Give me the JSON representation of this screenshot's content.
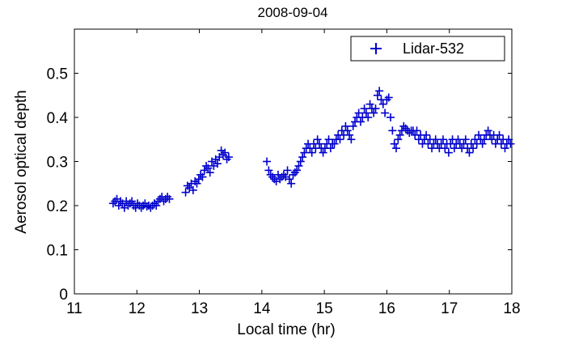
{
  "chart_data": {
    "type": "scatter",
    "title": "2008-09-04",
    "xlabel": "Local time (hr)",
    "ylabel": "Aerosol optical depth",
    "xlim": [
      11,
      18
    ],
    "ylim": [
      0,
      0.6
    ],
    "xticks": [
      "11",
      "12",
      "13",
      "14",
      "15",
      "16",
      "17",
      "18"
    ],
    "yticks": [
      "0",
      "0.1",
      "0.2",
      "0.3",
      "0.4",
      "0.5"
    ],
    "grid": false,
    "legend_position": "top-right",
    "marker": "plus",
    "series": [
      {
        "name": "Lidar-532",
        "color": "#0000cc",
        "x": [
          11.62,
          11.65,
          11.68,
          11.71,
          11.74,
          11.77,
          11.8,
          11.83,
          11.86,
          11.89,
          11.92,
          11.95,
          11.98,
          12.01,
          12.04,
          12.07,
          12.1,
          12.13,
          12.16,
          12.19,
          12.22,
          12.25,
          12.28,
          12.31,
          12.34,
          12.37,
          12.4,
          12.43,
          12.46,
          12.49,
          12.52,
          12.78,
          12.81,
          12.84,
          12.87,
          12.9,
          12.93,
          12.96,
          12.99,
          13.02,
          13.05,
          13.08,
          13.11,
          13.14,
          13.17,
          13.2,
          13.23,
          13.26,
          13.29,
          13.32,
          13.35,
          13.38,
          13.41,
          13.44,
          13.47,
          14.08,
          14.11,
          14.14,
          14.17,
          14.2,
          14.23,
          14.26,
          14.29,
          14.32,
          14.35,
          14.38,
          14.41,
          14.44,
          14.47,
          14.5,
          14.53,
          14.56,
          14.59,
          14.62,
          14.65,
          14.68,
          14.71,
          14.74,
          14.77,
          14.8,
          14.83,
          14.86,
          14.89,
          14.92,
          14.95,
          14.98,
          15.01,
          15.04,
          15.07,
          15.1,
          15.13,
          15.16,
          15.19,
          15.22,
          15.25,
          15.28,
          15.31,
          15.34,
          15.37,
          15.4,
          15.43,
          15.46,
          15.49,
          15.52,
          15.55,
          15.58,
          15.61,
          15.64,
          15.67,
          15.7,
          15.73,
          15.76,
          15.79,
          15.82,
          15.85,
          15.88,
          15.91,
          15.94,
          15.97,
          16.0,
          16.03,
          16.06,
          16.09,
          16.12,
          16.15,
          16.18,
          16.21,
          16.24,
          16.27,
          16.3,
          16.33,
          16.36,
          16.39,
          16.42,
          16.45,
          16.48,
          16.51,
          16.54,
          16.57,
          16.6,
          16.63,
          16.66,
          16.69,
          16.72,
          16.75,
          16.78,
          16.81,
          16.84,
          16.87,
          16.9,
          16.93,
          16.96,
          16.99,
          17.02,
          17.05,
          17.08,
          17.11,
          17.14,
          17.17,
          17.2,
          17.23,
          17.26,
          17.29,
          17.32,
          17.35,
          17.38,
          17.41,
          17.44,
          17.47,
          17.5,
          17.53,
          17.56,
          17.59,
          17.62,
          17.65,
          17.68,
          17.71,
          17.74,
          17.77,
          17.8,
          17.83,
          17.86,
          17.89,
          17.92,
          17.95,
          17.98
        ],
        "y": [
          0.205,
          0.21,
          0.215,
          0.2,
          0.21,
          0.205,
          0.195,
          0.21,
          0.2,
          0.205,
          0.21,
          0.2,
          0.195,
          0.205,
          0.2,
          0.195,
          0.2,
          0.205,
          0.198,
          0.2,
          0.195,
          0.2,
          0.205,
          0.2,
          0.21,
          0.215,
          0.22,
          0.21,
          0.215,
          0.22,
          0.215,
          0.23,
          0.245,
          0.24,
          0.25,
          0.235,
          0.255,
          0.25,
          0.26,
          0.27,
          0.265,
          0.28,
          0.29,
          0.285,
          0.275,
          0.3,
          0.29,
          0.305,
          0.295,
          0.31,
          0.325,
          0.315,
          0.32,
          0.305,
          0.31,
          0.3,
          0.28,
          0.27,
          0.265,
          0.26,
          0.255,
          0.27,
          0.26,
          0.265,
          0.27,
          0.265,
          0.28,
          0.26,
          0.25,
          0.27,
          0.275,
          0.28,
          0.29,
          0.3,
          0.31,
          0.32,
          0.33,
          0.34,
          0.33,
          0.32,
          0.34,
          0.33,
          0.35,
          0.34,
          0.33,
          0.32,
          0.33,
          0.34,
          0.35,
          0.33,
          0.34,
          0.34,
          0.35,
          0.36,
          0.35,
          0.37,
          0.36,
          0.38,
          0.37,
          0.36,
          0.35,
          0.38,
          0.39,
          0.4,
          0.41,
          0.39,
          0.4,
          0.42,
          0.41,
          0.4,
          0.43,
          0.42,
          0.41,
          0.42,
          0.45,
          0.46,
          0.44,
          0.43,
          0.41,
          0.44,
          0.445,
          0.4,
          0.37,
          0.34,
          0.33,
          0.35,
          0.36,
          0.37,
          0.38,
          0.375,
          0.37,
          0.365,
          0.37,
          0.37,
          0.36,
          0.37,
          0.35,
          0.36,
          0.34,
          0.35,
          0.36,
          0.34,
          0.35,
          0.33,
          0.34,
          0.35,
          0.34,
          0.33,
          0.34,
          0.35,
          0.33,
          0.34,
          0.32,
          0.34,
          0.35,
          0.33,
          0.34,
          0.35,
          0.34,
          0.33,
          0.34,
          0.35,
          0.33,
          0.32,
          0.34,
          0.33,
          0.35,
          0.34,
          0.36,
          0.35,
          0.34,
          0.35,
          0.36,
          0.37,
          0.36,
          0.35,
          0.36,
          0.34,
          0.35,
          0.36,
          0.34,
          0.35,
          0.33,
          0.34,
          0.35,
          0.34
        ]
      }
    ]
  }
}
